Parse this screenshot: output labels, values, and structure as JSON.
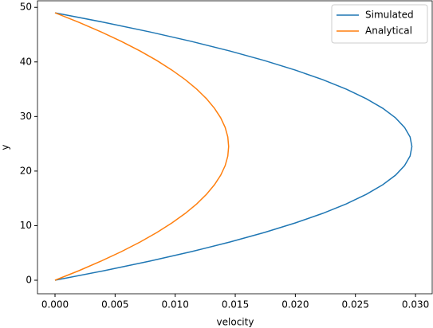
{
  "chart_data": {
    "type": "line",
    "xlabel": "velocity",
    "ylabel": "y",
    "y": [
      0,
      1.75,
      3.5,
      5.25,
      7,
      8.75,
      10.5,
      12.25,
      14,
      15.75,
      17.5,
      19.25,
      21,
      22.75,
      24.5,
      26.25,
      28,
      29.75,
      31.5,
      33.25,
      35,
      36.75,
      38.5,
      40.25,
      42,
      43.75,
      45.5,
      47.25,
      49
    ],
    "series": [
      {
        "name": "Simulated",
        "color": "#1f77b4",
        "values": [
          0,
          0.00409,
          0.00788,
          0.01137,
          0.01455,
          0.01743,
          0.02,
          0.02228,
          0.02425,
          0.02591,
          0.02728,
          0.02834,
          0.02909,
          0.02955,
          0.0297,
          0.02955,
          0.02909,
          0.02834,
          0.02728,
          0.02591,
          0.02425,
          0.02228,
          0.02,
          0.01743,
          0.01455,
          0.01137,
          0.00788,
          0.00409,
          0
        ]
      },
      {
        "name": "Analytical",
        "color": "#ff7f0e",
        "values": [
          0,
          0.00199,
          0.00383,
          0.00553,
          0.00708,
          0.00848,
          0.00973,
          0.01084,
          0.0118,
          0.01261,
          0.01327,
          0.01379,
          0.01416,
          0.01438,
          0.01445,
          0.01438,
          0.01416,
          0.01379,
          0.01327,
          0.01261,
          0.0118,
          0.01084,
          0.00973,
          0.00848,
          0.00708,
          0.00553,
          0.00383,
          0.00199,
          0
        ]
      }
    ],
    "xlim": [
      -0.00146,
      0.03139
    ],
    "ylim": [
      -2.48,
      51.2
    ],
    "xticks": [
      {
        "value": 0,
        "label": "0.000"
      },
      {
        "value": 0.005,
        "label": "0.005"
      },
      {
        "value": 0.01,
        "label": "0.010"
      },
      {
        "value": 0.015,
        "label": "0.015"
      },
      {
        "value": 0.02,
        "label": "0.020"
      },
      {
        "value": 0.025,
        "label": "0.025"
      },
      {
        "value": 0.03,
        "label": "0.030"
      }
    ],
    "yticks": [
      0,
      10,
      20,
      30,
      40,
      50
    ],
    "legend": "upper right"
  }
}
